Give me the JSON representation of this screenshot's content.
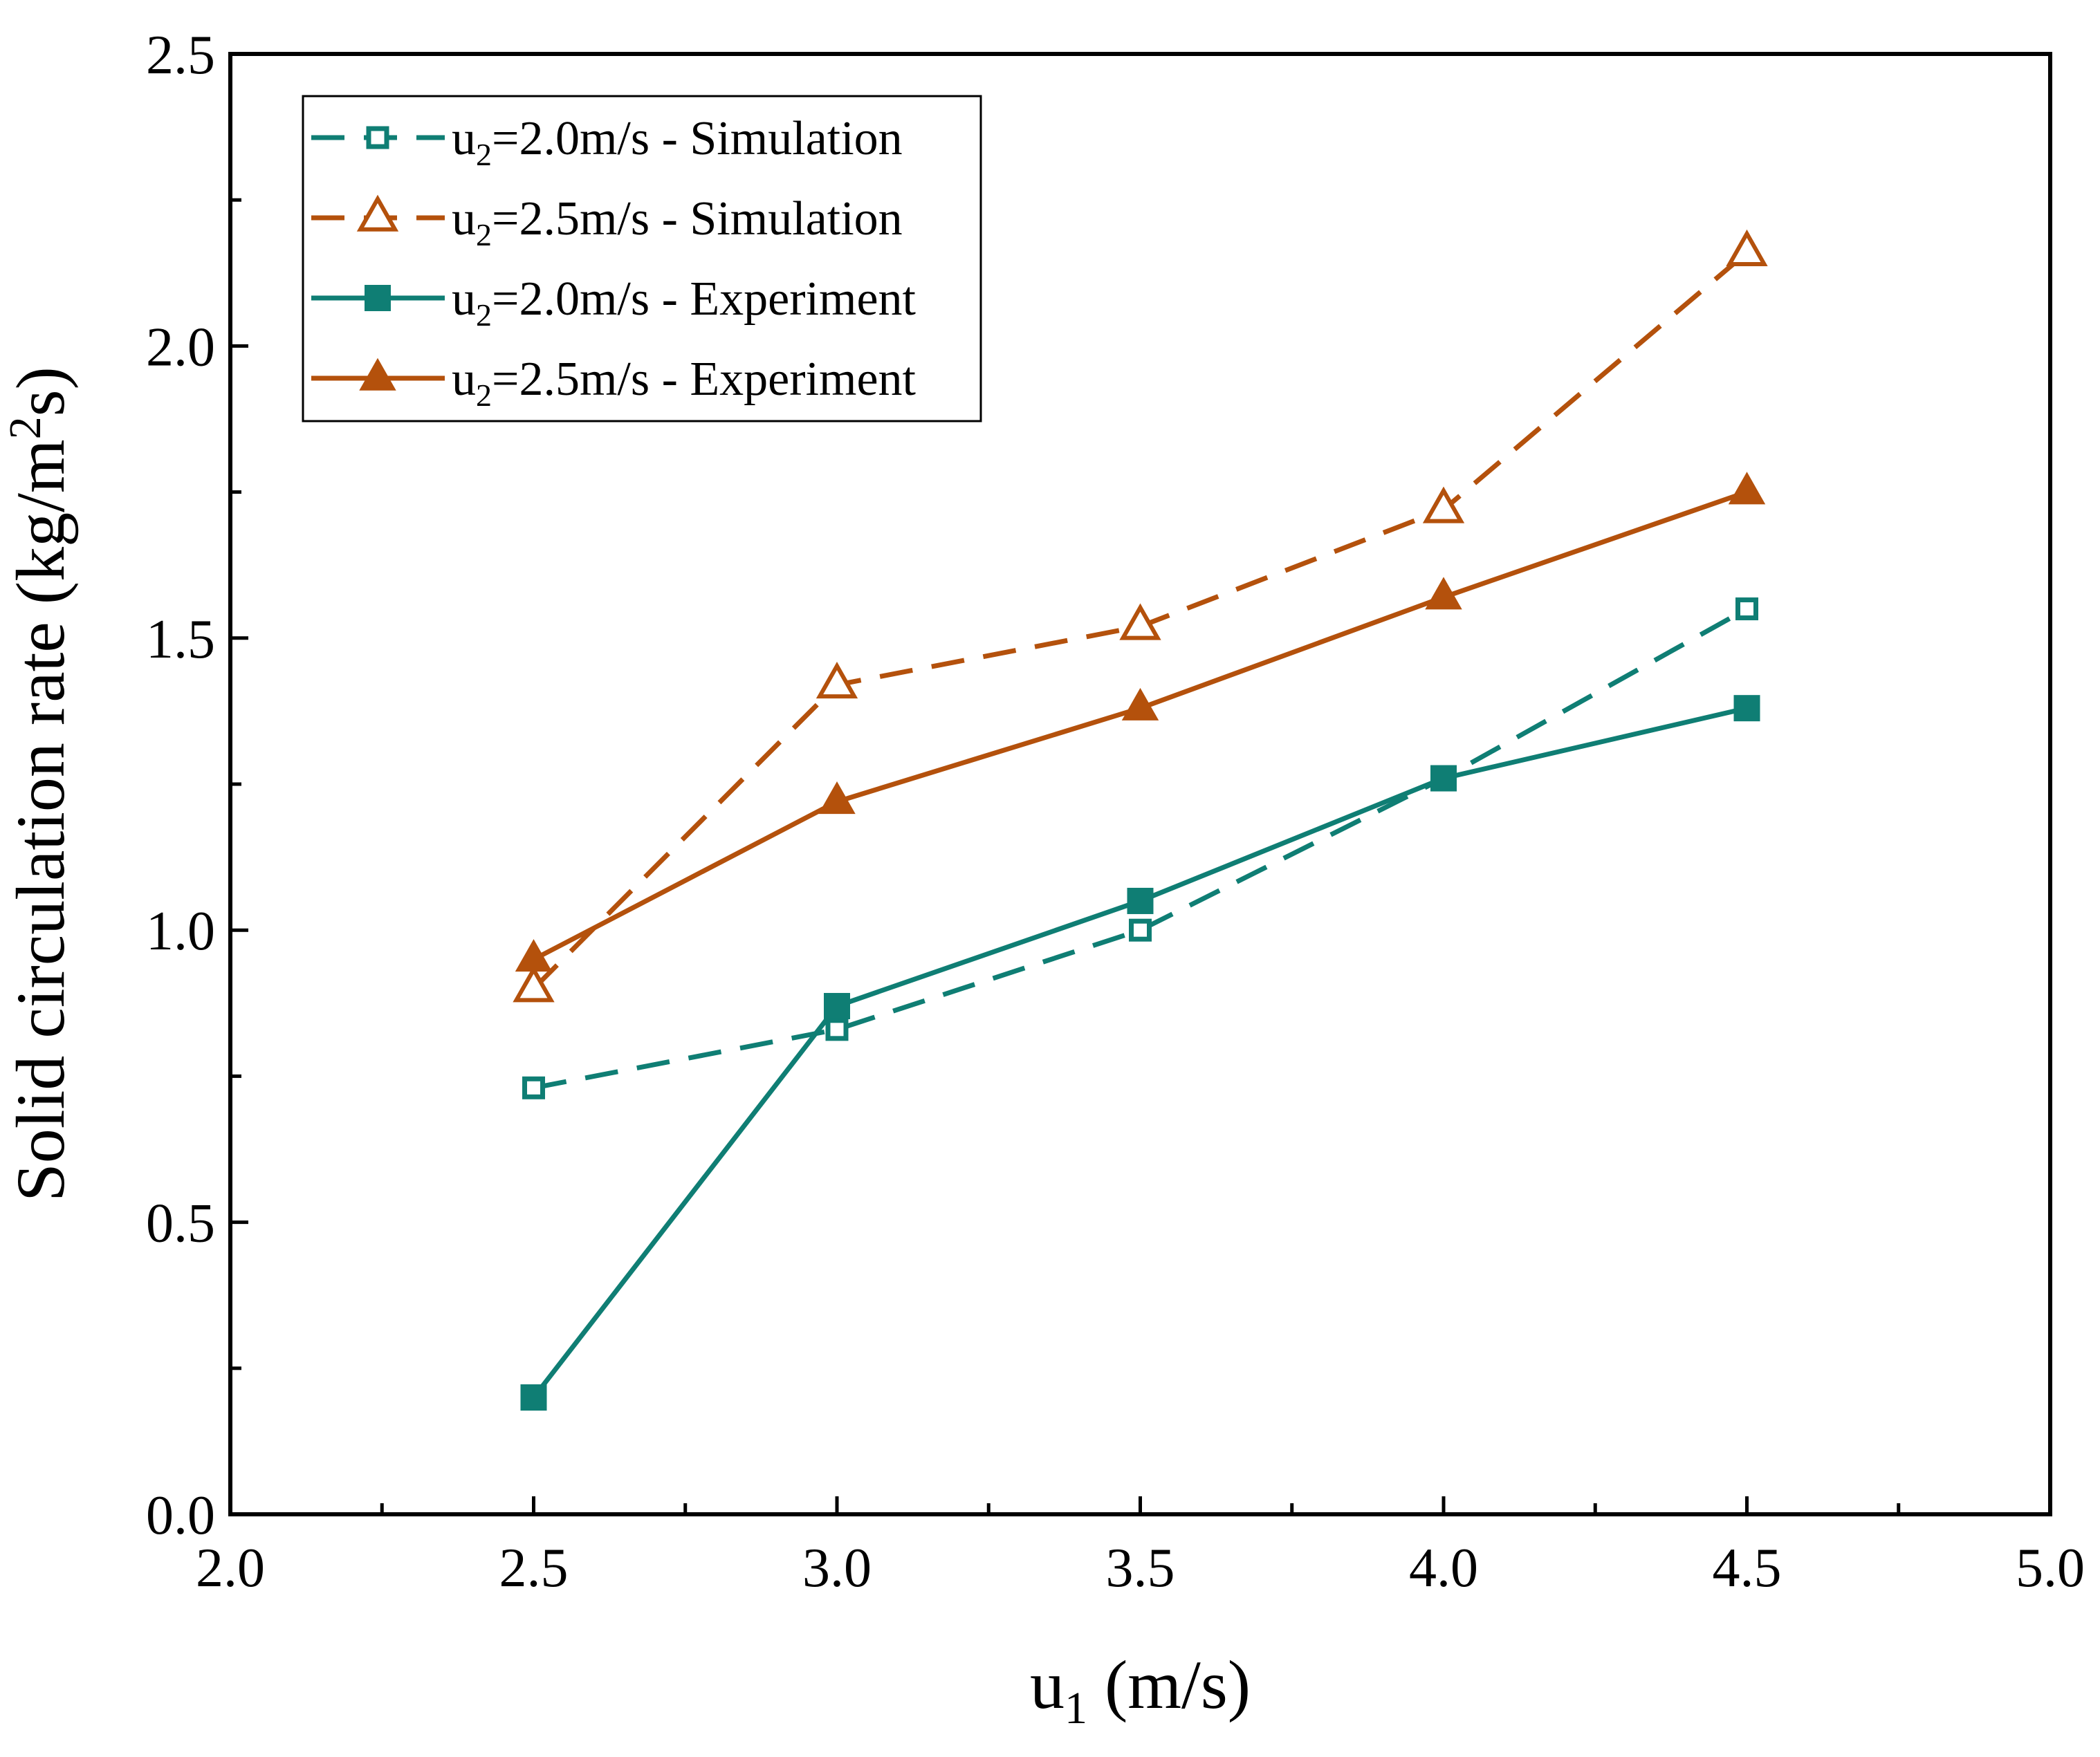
{
  "chart_data": {
    "type": "line",
    "title": "",
    "xlabel": {
      "base": "u",
      "sub": "1",
      "rest": " (m/s)"
    },
    "ylabel": {
      "text": "Solid circulation rate (kg/m",
      "sup": "2",
      "tail": "s)"
    },
    "xlim": [
      2.0,
      5.0
    ],
    "ylim": [
      0.0,
      2.5
    ],
    "x_ticks": [
      "2.0",
      "2.5",
      "3.0",
      "3.5",
      "4.0",
      "4.5",
      "5.0"
    ],
    "y_ticks": [
      "0.0",
      "0.5",
      "1.0",
      "1.5",
      "2.0",
      "2.5"
    ],
    "grid": false,
    "legend_position": "top-left",
    "x": [
      2.5,
      3.0,
      3.5,
      4.0,
      4.5
    ],
    "series": [
      {
        "name": "u2=2.0m/s - Simulation",
        "label": {
          "base": "u",
          "sub": "2",
          "rest": "=2.0m/s - Simulation"
        },
        "values": [
          0.73,
          0.83,
          1.0,
          1.26,
          1.55
        ],
        "color": "#0f7e74",
        "dashed": true,
        "marker": "square-open"
      },
      {
        "name": "u2=2.5m/s - Simulation",
        "label": {
          "base": "u",
          "sub": "2",
          "rest": "=2.5m/s - Simulation"
        },
        "values": [
          0.9,
          1.42,
          1.52,
          1.72,
          2.16
        ],
        "color": "#b4510c",
        "dashed": true,
        "marker": "triangle-open"
      },
      {
        "name": "u2=2.0m/s - Experiment",
        "label": {
          "base": "u",
          "sub": "2",
          "rest": "=2.0m/s - Experiment"
        },
        "values": [
          0.2,
          0.87,
          1.05,
          1.26,
          1.38
        ],
        "color": "#0f7e74",
        "dashed": false,
        "marker": "square-filled"
      },
      {
        "name": "u2=2.5m/s - Experiment",
        "label": {
          "base": "u",
          "sub": "2",
          "rest": "=2.5m/s - Experiment"
        },
        "values": [
          0.95,
          1.22,
          1.38,
          1.57,
          1.75
        ],
        "color": "#b4510c",
        "dashed": false,
        "marker": "triangle-filled"
      }
    ]
  }
}
